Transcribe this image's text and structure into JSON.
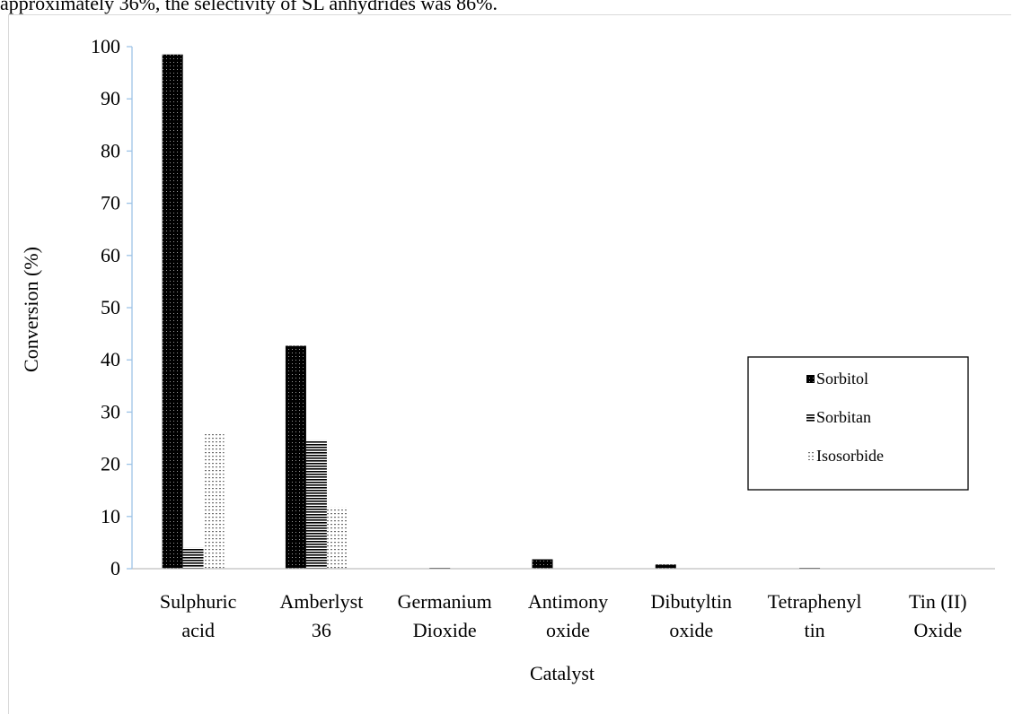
{
  "context_text": "approximately 36%, the selectivity of SL anhydrides was 86%.",
  "chart_data": {
    "type": "bar",
    "xlabel": "Catalyst",
    "ylabel": "Conversion (%)",
    "ylim": [
      0,
      100
    ],
    "yticks": [
      0,
      10,
      20,
      30,
      40,
      50,
      60,
      70,
      80,
      90,
      100
    ],
    "grid": false,
    "legend_position": "right",
    "categories": [
      [
        "Sulphuric",
        "acid"
      ],
      [
        "Amberlyst",
        "36"
      ],
      [
        "Germanium",
        "Dioxide"
      ],
      [
        "Antimony",
        "oxide"
      ],
      [
        "Dibutyltin",
        "oxide"
      ],
      [
        "Tetraphenyl",
        "tin"
      ],
      [
        "Tin (II)",
        "Oxide"
      ]
    ],
    "series": [
      {
        "name": "Sorbitol",
        "values": [
          98.5,
          42.7,
          0,
          1.8,
          0.8,
          0,
          0
        ],
        "pattern": "dots-dark"
      },
      {
        "name": "Sorbitan",
        "values": [
          4.0,
          24.6,
          0.2,
          0,
          0,
          0.3,
          0
        ],
        "pattern": "hlines"
      },
      {
        "name": "Isosorbide",
        "values": [
          26.0,
          11.8,
          0,
          0,
          0,
          0,
          0
        ],
        "pattern": "dots-light"
      }
    ]
  }
}
